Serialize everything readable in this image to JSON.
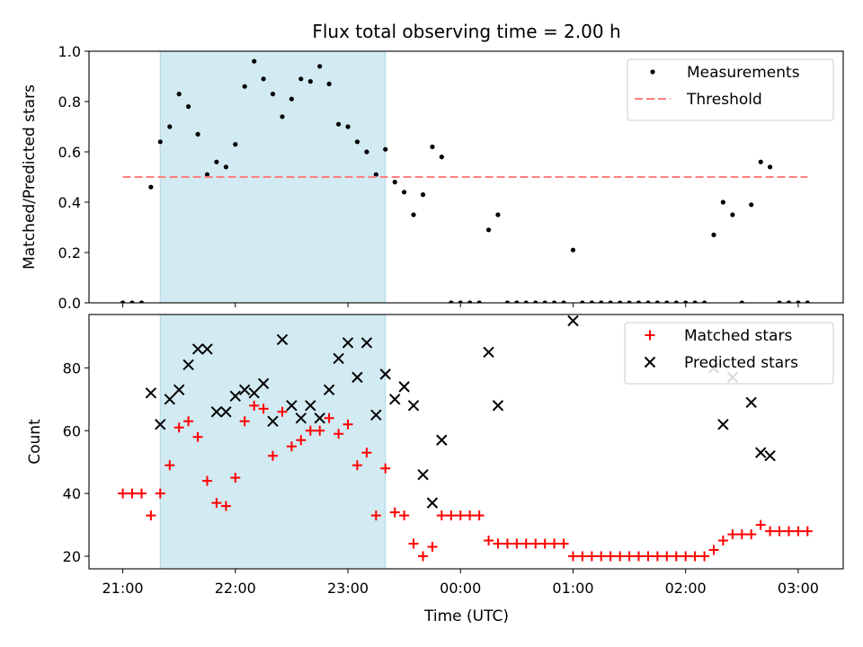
{
  "chart_data": {
    "type": "scatter",
    "title": "Flux total observing time = 2.00 h",
    "xlabel": "Time (UTC)",
    "x_unit": "hours (21 = 21:00, 24 = 00:00, 27 = 03:00)",
    "x_ticks": [
      "21:00",
      "22:00",
      "23:00",
      "00:00",
      "01:00",
      "02:00",
      "03:00"
    ],
    "x_tick_values": [
      21,
      22,
      23,
      24,
      25,
      26,
      27
    ],
    "xlim": [
      20.7,
      27.4
    ],
    "highlight_span": [
      21.333,
      23.333
    ],
    "highlight_color": "#add8e6",
    "panels": [
      {
        "id": "ratio",
        "ylabel": "Matched/Predicted stars",
        "ylim": [
          0,
          1.0
        ],
        "y_ticks": [
          "0.0",
          "0.2",
          "0.4",
          "0.6",
          "0.8",
          "1.0"
        ],
        "y_tick_values": [
          0,
          0.2,
          0.4,
          0.6,
          0.8,
          1.0
        ],
        "legend_position": "upper right",
        "series": [
          {
            "name": "Measurements",
            "marker": "dot",
            "color": "#000000",
            "x": [
              21.0,
              21.083,
              21.167,
              21.25,
              21.333,
              21.417,
              21.5,
              21.583,
              21.667,
              21.75,
              21.833,
              21.917,
              22.0,
              22.083,
              22.167,
              22.25,
              22.333,
              22.417,
              22.5,
              22.583,
              22.667,
              22.75,
              22.833,
              22.917,
              23.0,
              23.083,
              23.167,
              23.25,
              23.333,
              23.417,
              23.5,
              23.583,
              23.667,
              23.75,
              23.833,
              23.917,
              24.0,
              24.083,
              24.167,
              24.25,
              24.333,
              24.417,
              24.5,
              24.583,
              24.667,
              24.75,
              24.833,
              24.917,
              25.0,
              25.083,
              25.167,
              25.25,
              25.333,
              25.417,
              25.5,
              25.583,
              25.667,
              25.75,
              25.833,
              25.917,
              26.0,
              26.083,
              26.167,
              26.25,
              26.333,
              26.417,
              26.5,
              26.583,
              26.667,
              26.75,
              26.833,
              26.917,
              27.0,
              27.083
            ],
            "y": [
              0,
              0,
              0,
              0.46,
              0.64,
              0.7,
              0.83,
              0.78,
              0.67,
              0.51,
              0.56,
              0.54,
              0.63,
              0.86,
              0.96,
              0.89,
              0.83,
              0.74,
              0.81,
              0.89,
              0.88,
              0.94,
              0.87,
              0.71,
              0.7,
              0.64,
              0.6,
              0.51,
              0.61,
              0.48,
              0.44,
              0.35,
              0.43,
              0.62,
              0.58,
              0,
              0,
              0,
              0,
              0.29,
              0.35,
              0,
              0,
              0,
              0,
              0,
              0,
              0,
              0.21,
              0,
              0,
              0,
              0,
              0,
              0,
              0,
              0,
              0,
              0,
              0,
              0,
              0,
              0,
              0.27,
              0.4,
              0.35,
              0,
              0.39,
              0.56,
              0.54,
              0,
              0,
              0,
              0
            ]
          },
          {
            "name": "Threshold",
            "marker": "dashed-line",
            "color": "#ff7f7f",
            "x": [
              21.0,
              27.083
            ],
            "y": [
              0.5,
              0.5
            ]
          }
        ]
      },
      {
        "id": "counts",
        "ylabel": "Count",
        "ylim": [
          16,
          97
        ],
        "y_ticks": [
          "20",
          "40",
          "60",
          "80"
        ],
        "y_tick_values": [
          20,
          40,
          60,
          80
        ],
        "legend_position": "upper right",
        "series": [
          {
            "name": "Matched stars",
            "marker": "plus",
            "color": "#ff0000",
            "x": [
              21.0,
              21.083,
              21.167,
              21.25,
              21.333,
              21.417,
              21.5,
              21.583,
              21.667,
              21.75,
              21.833,
              21.917,
              22.0,
              22.083,
              22.167,
              22.25,
              22.333,
              22.417,
              22.5,
              22.583,
              22.667,
              22.75,
              22.833,
              22.917,
              23.0,
              23.083,
              23.167,
              23.25,
              23.333,
              23.417,
              23.5,
              23.583,
              23.667,
              23.75,
              23.833,
              23.917,
              24.0,
              24.083,
              24.167,
              24.25,
              24.333,
              24.417,
              24.5,
              24.583,
              24.667,
              24.75,
              24.833,
              24.917,
              25.0,
              25.083,
              25.167,
              25.25,
              25.333,
              25.417,
              25.5,
              25.583,
              25.667,
              25.75,
              25.833,
              25.917,
              26.0,
              26.083,
              26.167,
              26.25,
              26.333,
              26.417,
              26.5,
              26.583,
              26.667,
              26.75,
              26.833,
              26.917,
              27.0,
              27.083
            ],
            "y": [
              40,
              40,
              40,
              33,
              40,
              49,
              61,
              63,
              58,
              44,
              37,
              36,
              45,
              63,
              68,
              67,
              52,
              66,
              55,
              57,
              60,
              60,
              64,
              59,
              62,
              49,
              53,
              33,
              48,
              34,
              33,
              24,
              20,
              23,
              33,
              33,
              33,
              33,
              33,
              25,
              24,
              24,
              24,
              24,
              24,
              24,
              24,
              24,
              20,
              20,
              20,
              20,
              20,
              20,
              20,
              20,
              20,
              20,
              20,
              20,
              20,
              20,
              20,
              22,
              25,
              27,
              27,
              27,
              30,
              28,
              28,
              28,
              28,
              28
            ]
          },
          {
            "name": "Predicted stars",
            "marker": "x",
            "color": "#000000",
            "x": [
              21.25,
              21.333,
              21.417,
              21.5,
              21.583,
              21.667,
              21.75,
              21.833,
              21.917,
              22.0,
              22.083,
              22.167,
              22.25,
              22.333,
              22.417,
              22.5,
              22.583,
              22.667,
              22.75,
              22.833,
              22.917,
              23.0,
              23.083,
              23.167,
              23.25,
              23.333,
              23.417,
              23.5,
              23.583,
              23.667,
              23.75,
              23.833,
              24.25,
              24.333,
              25.0,
              26.25,
              26.333,
              26.417,
              26.583,
              26.667,
              26.75
            ],
            "y": [
              72,
              62,
              70,
              73,
              81,
              86,
              86,
              66,
              66,
              71,
              73,
              72,
              75,
              63,
              89,
              68,
              64,
              68,
              64,
              73,
              83,
              88,
              77,
              88,
              65,
              78,
              70,
              74,
              68,
              46,
              37,
              57,
              85,
              68,
              95,
              80,
              62,
              77,
              69,
              53,
              52
            ]
          }
        ]
      }
    ]
  }
}
